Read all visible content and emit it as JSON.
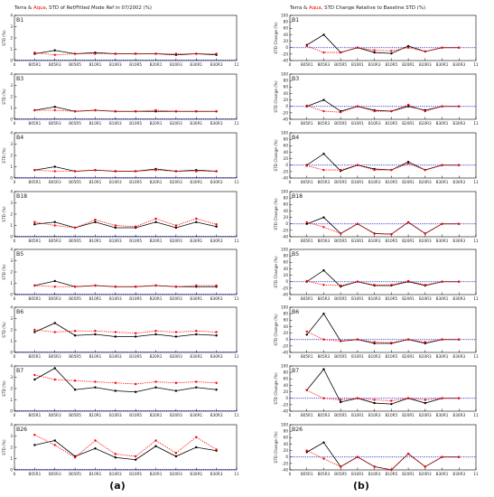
{
  "figure": {
    "caption_a": "(a)",
    "caption_b": "(b)",
    "colors": {
      "terra": "#000000",
      "aqua": "#ff0000",
      "reference": "#0000cc"
    }
  },
  "chart_data": [
    {
      "type": "line",
      "title_terra": "Terra",
      "title_amp": " & ",
      "title_aqua": "Aqua",
      "title_rest": ", STD of Ref/Fitted Mode Ref in 07/2002 (%)",
      "ylabel": "STD (%)",
      "categories": [
        "B05R1",
        "B05R3",
        "B05R5",
        "B10R1",
        "B10R3",
        "B10R5",
        "B20R1",
        "B20R3",
        "B30R1",
        "B30R3"
      ],
      "x": [
        1,
        2,
        3,
        4,
        5,
        6,
        7,
        8,
        9,
        10
      ],
      "xlim": [
        0,
        11
      ],
      "xticks": [
        "0",
        "B05R1",
        "B05R3",
        "B05R5",
        "B10R1",
        "B10R3",
        "B10R5",
        "B20R1",
        "B20R3",
        "B30R1",
        "B30R3",
        "11"
      ],
      "panels": [
        {
          "band": "B1",
          "ylim": [
            0,
            4
          ],
          "yticks": [
            "0",
            "1",
            "2",
            "3",
            "4"
          ],
          "series": [
            {
              "name": "Terra",
              "values": [
                0.6,
                0.9,
                0.6,
                0.7,
                0.6,
                0.6,
                0.6,
                0.5,
                0.6,
                0.5
              ]
            },
            {
              "name": "Aqua",
              "values": [
                0.7,
                0.5,
                0.6,
                0.6,
                0.6,
                0.6,
                0.6,
                0.6,
                0.6,
                0.6
              ]
            }
          ]
        },
        {
          "band": "B3",
          "ylim": [
            0,
            4
          ],
          "yticks": [
            "0",
            "1",
            "2",
            "3",
            "4"
          ],
          "series": [
            {
              "name": "Terra",
              "values": [
                0.8,
                1.1,
                0.7,
                0.8,
                0.7,
                0.7,
                0.7,
                0.7,
                0.7,
                0.7
              ]
            },
            {
              "name": "Aqua",
              "values": [
                0.8,
                0.8,
                0.7,
                0.8,
                0.7,
                0.7,
                0.8,
                0.7,
                0.7,
                0.7
              ]
            }
          ]
        },
        {
          "band": "B4",
          "ylim": [
            0,
            4
          ],
          "yticks": [
            "0",
            "1",
            "2",
            "3",
            "4"
          ],
          "series": [
            {
              "name": "Terra",
              "values": [
                0.7,
                1.0,
                0.6,
                0.7,
                0.6,
                0.6,
                0.8,
                0.6,
                0.7,
                0.6
              ]
            },
            {
              "name": "Aqua",
              "values": [
                0.7,
                0.6,
                0.6,
                0.7,
                0.6,
                0.6,
                0.7,
                0.6,
                0.6,
                0.6
              ]
            }
          ]
        },
        {
          "band": "B18",
          "ylim": [
            0,
            4
          ],
          "yticks": [
            "0",
            "1",
            "2",
            "3",
            "4"
          ],
          "series": [
            {
              "name": "Terra",
              "values": [
                1.1,
                1.3,
                0.8,
                1.3,
                0.8,
                0.8,
                1.3,
                0.8,
                1.3,
                0.9
              ]
            },
            {
              "name": "Aqua",
              "values": [
                1.3,
                1.0,
                0.8,
                1.5,
                1.0,
                0.9,
                1.6,
                1.0,
                1.6,
                1.1
              ]
            }
          ]
        },
        {
          "band": "B5",
          "ylim": [
            0,
            4
          ],
          "yticks": [
            "0",
            "1",
            "2",
            "3",
            "4"
          ],
          "series": [
            {
              "name": "Terra",
              "values": [
                0.8,
                1.2,
                0.7,
                0.8,
                0.7,
                0.7,
                0.8,
                0.7,
                0.7,
                0.7
              ]
            },
            {
              "name": "Aqua",
              "values": [
                0.8,
                0.7,
                0.7,
                0.8,
                0.7,
                0.7,
                0.8,
                0.7,
                0.8,
                0.8
              ]
            }
          ]
        },
        {
          "band": "B6",
          "ylim": [
            0,
            4
          ],
          "yticks": [
            "0",
            "1",
            "2",
            "3",
            "4"
          ],
          "series": [
            {
              "name": "Terra",
              "values": [
                1.8,
                2.6,
                1.5,
                1.6,
                1.4,
                1.4,
                1.6,
                1.4,
                1.6,
                1.5
              ]
            },
            {
              "name": "Aqua",
              "values": [
                2.0,
                1.8,
                1.9,
                1.9,
                1.8,
                1.7,
                1.9,
                1.8,
                1.9,
                1.8
              ]
            }
          ]
        },
        {
          "band": "B7",
          "ylim": [
            0,
            4
          ],
          "yticks": [
            "0",
            "1",
            "2",
            "3",
            "4"
          ],
          "series": [
            {
              "name": "Terra",
              "values": [
                2.8,
                3.8,
                1.9,
                2.1,
                1.8,
                1.7,
                2.1,
                1.8,
                2.1,
                1.9
              ]
            },
            {
              "name": "Aqua",
              "values": [
                3.2,
                2.8,
                2.7,
                2.6,
                2.5,
                2.4,
                2.6,
                2.5,
                2.6,
                2.5
              ]
            }
          ]
        },
        {
          "band": "B26",
          "ylim": [
            0,
            4
          ],
          "yticks": [
            "0",
            "1",
            "2",
            "3",
            "4"
          ],
          "series": [
            {
              "name": "Terra",
              "values": [
                2.2,
                2.6,
                1.2,
                1.9,
                1.1,
                0.9,
                2.1,
                1.2,
                2.0,
                1.7
              ]
            },
            {
              "name": "Aqua",
              "values": [
                3.1,
                2.2,
                1.1,
                2.6,
                1.4,
                1.2,
                2.6,
                1.5,
                2.9,
                1.8
              ]
            }
          ]
        }
      ]
    },
    {
      "type": "line",
      "title_terra": "Terra",
      "title_amp": " & ",
      "title_aqua": "Aqua",
      "title_rest": ", STD Change Relative to Baseline STD (%)",
      "ylabel": "STD Change (%)",
      "categories": [
        "B05R1",
        "B05R3",
        "B05R5",
        "B10R1",
        "B10R3",
        "B10R5",
        "B20R1",
        "B20R3",
        "B30R1",
        "B30R3"
      ],
      "x": [
        1,
        2,
        3,
        4,
        5,
        6,
        7,
        8,
        9,
        10
      ],
      "xlim": [
        0,
        11
      ],
      "xticks": [
        "0",
        "B05R1",
        "B05R3",
        "B05R5",
        "B10R1",
        "B10R3",
        "B10R5",
        "B20R1",
        "B20R3",
        "B30R1",
        "B30R3",
        "11"
      ],
      "baseline": 0,
      "panels": [
        {
          "band": "B1",
          "ylim": [
            -40,
            100
          ],
          "yticks": [
            "-40",
            "-20",
            "0",
            "20",
            "40",
            "60",
            "80",
            "100"
          ],
          "series": [
            {
              "name": "Terra",
              "values": [
                8,
                40,
                -15,
                0,
                -15,
                -18,
                5,
                -12,
                0,
                0
              ]
            },
            {
              "name": "Aqua",
              "values": [
                5,
                -15,
                -15,
                0,
                -8,
                -10,
                0,
                -12,
                0,
                0
              ]
            }
          ]
        },
        {
          "band": "B3",
          "ylim": [
            -40,
            100
          ],
          "yticks": [
            "-40",
            "-20",
            "0",
            "20",
            "40",
            "60",
            "80",
            "100"
          ],
          "series": [
            {
              "name": "Terra",
              "values": [
                0,
                20,
                -15,
                0,
                -12,
                -15,
                0,
                -12,
                0,
                0
              ]
            },
            {
              "name": "Aqua",
              "values": [
                2,
                -15,
                -18,
                0,
                -15,
                -15,
                5,
                -15,
                0,
                0
              ]
            }
          ]
        },
        {
          "band": "B4",
          "ylim": [
            -40,
            100
          ],
          "yticks": [
            "-40",
            "-20",
            "0",
            "20",
            "40",
            "60",
            "80",
            "100"
          ],
          "series": [
            {
              "name": "Terra",
              "values": [
                0,
                35,
                -18,
                0,
                -12,
                -15,
                10,
                -15,
                0,
                0
              ]
            },
            {
              "name": "Aqua",
              "values": [
                -2,
                -15,
                -15,
                0,
                -15,
                -15,
                5,
                -15,
                0,
                0
              ]
            }
          ]
        },
        {
          "band": "B18",
          "ylim": [
            -40,
            100
          ],
          "yticks": [
            "-40",
            "-20",
            "0",
            "20",
            "40",
            "60",
            "80",
            "100"
          ],
          "series": [
            {
              "name": "Terra",
              "values": [
                0,
                20,
                -30,
                0,
                -30,
                -32,
                5,
                -30,
                0,
                0
              ]
            },
            {
              "name": "Aqua",
              "values": [
                5,
                -10,
                -30,
                0,
                -30,
                -32,
                5,
                -30,
                0,
                0
              ]
            }
          ]
        },
        {
          "band": "B5",
          "ylim": [
            -40,
            100
          ],
          "yticks": [
            "-40",
            "-20",
            "0",
            "20",
            "40",
            "60",
            "80",
            "100"
          ],
          "series": [
            {
              "name": "Terra",
              "values": [
                0,
                35,
                -15,
                0,
                -12,
                -12,
                0,
                -12,
                0,
                0
              ]
            },
            {
              "name": "Aqua",
              "values": [
                2,
                -10,
                -12,
                0,
                -10,
                -10,
                2,
                -10,
                0,
                0
              ]
            }
          ]
        },
        {
          "band": "B6",
          "ylim": [
            -40,
            100
          ],
          "yticks": [
            "-40",
            "-20",
            "0",
            "20",
            "40",
            "60",
            "80",
            "100"
          ],
          "series": [
            {
              "name": "Terra",
              "values": [
                15,
                80,
                -5,
                0,
                -12,
                -12,
                0,
                -12,
                0,
                0
              ]
            },
            {
              "name": "Aqua",
              "values": [
                25,
                0,
                -5,
                0,
                -8,
                -10,
                0,
                -8,
                0,
                0
              ]
            }
          ]
        },
        {
          "band": "B7",
          "ylim": [
            -40,
            100
          ],
          "yticks": [
            "-40",
            "-20",
            "0",
            "20",
            "40",
            "60",
            "80",
            "100"
          ],
          "series": [
            {
              "name": "Terra",
              "values": [
                25,
                90,
                -12,
                0,
                -15,
                -18,
                0,
                -15,
                0,
                0
              ]
            },
            {
              "name": "Aqua",
              "values": [
                25,
                0,
                -5,
                0,
                -5,
                -8,
                0,
                -5,
                0,
                0
              ]
            }
          ]
        },
        {
          "band": "B26",
          "ylim": [
            -40,
            100
          ],
          "yticks": [
            "-40",
            "-20",
            "0",
            "20",
            "40",
            "60",
            "80",
            "100"
          ],
          "series": [
            {
              "name": "Terra",
              "values": [
                15,
                45,
                -30,
                0,
                -30,
                -40,
                10,
                -30,
                0,
                0
              ]
            },
            {
              "name": "Aqua",
              "values": [
                20,
                -5,
                -30,
                0,
                -30,
                -40,
                10,
                -30,
                0,
                0
              ]
            }
          ]
        }
      ]
    }
  ]
}
